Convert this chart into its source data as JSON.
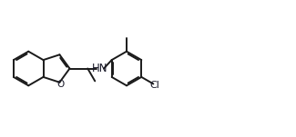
{
  "background_color": "#ffffff",
  "line_color": "#1a1a1a",
  "text_color": "#1a1a2a",
  "bond_lw": 1.4,
  "s": 0.19,
  "xlim": [
    0,
    3.25
  ],
  "ylim": [
    0,
    1.51
  ]
}
